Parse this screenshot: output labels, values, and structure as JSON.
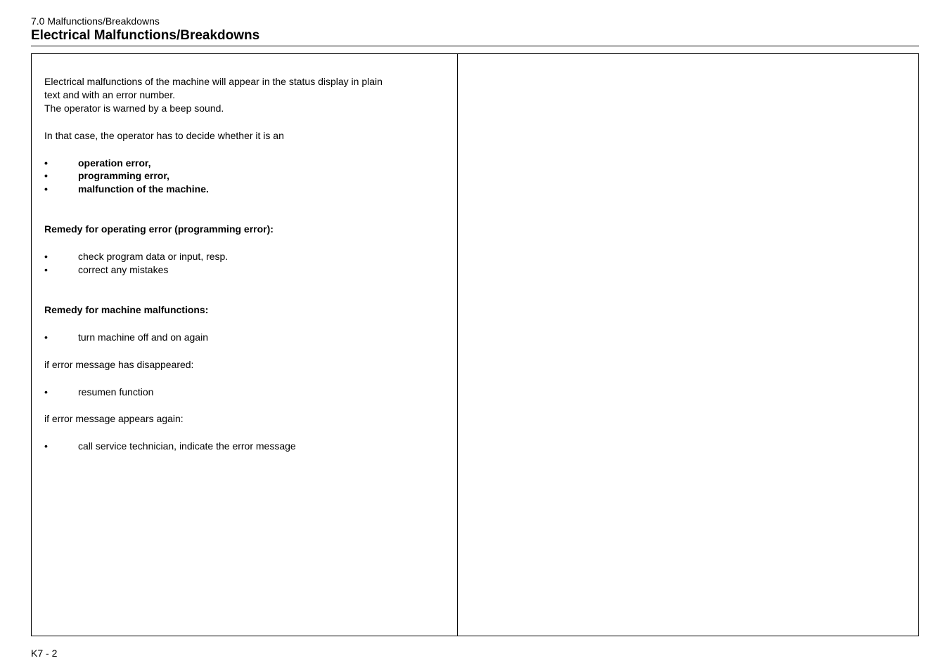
{
  "header": {
    "breadcrumb": "7.0 Malfunctions/Breakdowns",
    "title": "Electrical Malfunctions/Breakdowns"
  },
  "content": {
    "intro_line1": "Electrical malfunctions of the machine will appear in the status display in plain",
    "intro_line2": "text and with an error number.",
    "intro_line3": "The operator is warned by a beep sound.",
    "decide_line": "In that case, the operator has to decide whether it is an",
    "types": [
      "operation error,",
      "programming error,",
      "malfunction of the machine."
    ],
    "remedy_op_heading": "Remedy for operating error (programming error):",
    "remedy_op_items": [
      "check program data or input, resp.",
      "correct any mistakes"
    ],
    "remedy_machine_heading": "Remedy for machine malfunctions:",
    "remedy_machine_item1": "turn machine off and on again",
    "if_disappeared": "if error message has disappeared:",
    "resumen_item": "resumen function",
    "if_again": "if error message appears again:",
    "call_service_item": "call service technician, indicate the error message"
  },
  "footer": {
    "page_number": "K7 - 2"
  }
}
